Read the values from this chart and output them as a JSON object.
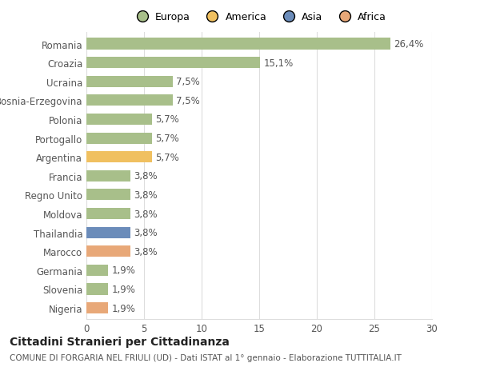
{
  "categories": [
    "Romania",
    "Croazia",
    "Ucraina",
    "Bosnia-Erzegovina",
    "Polonia",
    "Portogallo",
    "Argentina",
    "Francia",
    "Regno Unito",
    "Moldova",
    "Thailandia",
    "Marocco",
    "Germania",
    "Slovenia",
    "Nigeria"
  ],
  "values": [
    26.4,
    15.1,
    7.5,
    7.5,
    5.7,
    5.7,
    5.7,
    3.8,
    3.8,
    3.8,
    3.8,
    3.8,
    1.9,
    1.9,
    1.9
  ],
  "labels": [
    "26,4%",
    "15,1%",
    "7,5%",
    "7,5%",
    "5,7%",
    "5,7%",
    "5,7%",
    "3,8%",
    "3,8%",
    "3,8%",
    "3,8%",
    "3,8%",
    "1,9%",
    "1,9%",
    "1,9%"
  ],
  "bar_colors": [
    "#a8bf8a",
    "#a8bf8a",
    "#a8bf8a",
    "#a8bf8a",
    "#a8bf8a",
    "#a8bf8a",
    "#f0c060",
    "#a8bf8a",
    "#a8bf8a",
    "#a8bf8a",
    "#6b8cba",
    "#e8a878",
    "#a8bf8a",
    "#a8bf8a",
    "#e8a878"
  ],
  "legend_labels": [
    "Europa",
    "America",
    "Asia",
    "Africa"
  ],
  "legend_colors": [
    "#a8bf8a",
    "#f0c060",
    "#6b8cba",
    "#e8a878"
  ],
  "xlim": [
    0,
    30
  ],
  "xticks": [
    0,
    5,
    10,
    15,
    20,
    25,
    30
  ],
  "title": "Cittadini Stranieri per Cittadinanza",
  "subtitle": "COMUNE DI FORGARIA NEL FRIULI (UD) - Dati ISTAT al 1° gennaio - Elaborazione TUTTITALIA.IT",
  "background_color": "#ffffff",
  "grid_color": "#dddddd",
  "bar_height": 0.6,
  "label_fontsize": 8.5,
  "tick_fontsize": 8.5,
  "title_fontsize": 10,
  "subtitle_fontsize": 7.5
}
